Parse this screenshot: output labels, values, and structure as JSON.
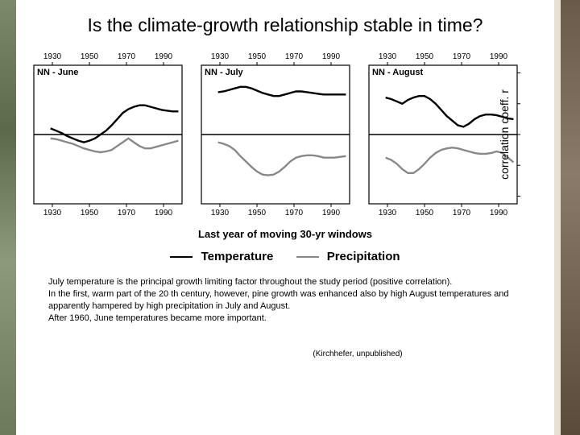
{
  "title": "Is the climate-growth relationship stable in time?",
  "ylabel": "correlation coeff. r",
  "xlabel": "Last year of moving 30-yr windows",
  "legend": {
    "temp": {
      "label": "Temperature",
      "color": "#000000",
      "width": 2.4
    },
    "precip": {
      "label": "Precipitation",
      "color": "#888888",
      "width": 2.4
    }
  },
  "axis": {
    "ylim": [
      -0.9,
      0.9
    ],
    "yticks": [
      -0.8,
      -0.4,
      0,
      0.4,
      0.8
    ],
    "xlim": [
      1920,
      2000
    ],
    "xticks_top": [
      1930,
      1950,
      1970,
      1990
    ],
    "xticks_bottom": [
      1930,
      1950,
      1970,
      1990
    ],
    "tick_fontsize": 10,
    "panel_label_fontsize": 11,
    "border_color": "#000000",
    "border_width": 1.2,
    "zero_line_width": 1.4,
    "panel_bg": "#ffffff"
  },
  "panels": [
    {
      "label": "NN - June",
      "temp_color": "#000000",
      "precip_color": "#888888",
      "temp": [
        [
          1929,
          0.08
        ],
        [
          1932,
          0.05
        ],
        [
          1935,
          0.02
        ],
        [
          1938,
          -0.02
        ],
        [
          1941,
          -0.05
        ],
        [
          1944,
          -0.08
        ],
        [
          1947,
          -0.1
        ],
        [
          1950,
          -0.08
        ],
        [
          1953,
          -0.05
        ],
        [
          1956,
          0.0
        ],
        [
          1959,
          0.05
        ],
        [
          1962,
          0.12
        ],
        [
          1965,
          0.2
        ],
        [
          1968,
          0.28
        ],
        [
          1971,
          0.33
        ],
        [
          1974,
          0.36
        ],
        [
          1977,
          0.38
        ],
        [
          1980,
          0.38
        ],
        [
          1983,
          0.36
        ],
        [
          1986,
          0.34
        ],
        [
          1989,
          0.32
        ],
        [
          1992,
          0.31
        ],
        [
          1995,
          0.3
        ],
        [
          1998,
          0.3
        ]
      ],
      "precip": [
        [
          1929,
          -0.05
        ],
        [
          1932,
          -0.06
        ],
        [
          1935,
          -0.08
        ],
        [
          1938,
          -0.1
        ],
        [
          1941,
          -0.12
        ],
        [
          1944,
          -0.15
        ],
        [
          1947,
          -0.18
        ],
        [
          1950,
          -0.2
        ],
        [
          1953,
          -0.22
        ],
        [
          1956,
          -0.23
        ],
        [
          1959,
          -0.22
        ],
        [
          1962,
          -0.2
        ],
        [
          1965,
          -0.15
        ],
        [
          1968,
          -0.1
        ],
        [
          1971,
          -0.05
        ],
        [
          1974,
          -0.1
        ],
        [
          1977,
          -0.15
        ],
        [
          1980,
          -0.18
        ],
        [
          1983,
          -0.18
        ],
        [
          1986,
          -0.16
        ],
        [
          1989,
          -0.14
        ],
        [
          1992,
          -0.12
        ],
        [
          1995,
          -0.1
        ],
        [
          1998,
          -0.08
        ]
      ]
    },
    {
      "label": "NN - July",
      "temp_color": "#000000",
      "precip_color": "#888888",
      "temp": [
        [
          1929,
          0.55
        ],
        [
          1932,
          0.56
        ],
        [
          1935,
          0.58
        ],
        [
          1938,
          0.6
        ],
        [
          1941,
          0.62
        ],
        [
          1944,
          0.62
        ],
        [
          1947,
          0.6
        ],
        [
          1950,
          0.57
        ],
        [
          1953,
          0.54
        ],
        [
          1956,
          0.52
        ],
        [
          1959,
          0.5
        ],
        [
          1962,
          0.5
        ],
        [
          1965,
          0.52
        ],
        [
          1968,
          0.54
        ],
        [
          1971,
          0.56
        ],
        [
          1974,
          0.56
        ],
        [
          1977,
          0.55
        ],
        [
          1980,
          0.54
        ],
        [
          1983,
          0.53
        ],
        [
          1986,
          0.52
        ],
        [
          1989,
          0.52
        ],
        [
          1992,
          0.52
        ],
        [
          1995,
          0.52
        ],
        [
          1998,
          0.52
        ]
      ],
      "precip": [
        [
          1929,
          -0.1
        ],
        [
          1932,
          -0.12
        ],
        [
          1935,
          -0.15
        ],
        [
          1938,
          -0.2
        ],
        [
          1941,
          -0.28
        ],
        [
          1944,
          -0.35
        ],
        [
          1947,
          -0.42
        ],
        [
          1950,
          -0.48
        ],
        [
          1953,
          -0.52
        ],
        [
          1956,
          -0.53
        ],
        [
          1959,
          -0.52
        ],
        [
          1962,
          -0.48
        ],
        [
          1965,
          -0.42
        ],
        [
          1968,
          -0.35
        ],
        [
          1971,
          -0.3
        ],
        [
          1974,
          -0.28
        ],
        [
          1977,
          -0.27
        ],
        [
          1980,
          -0.27
        ],
        [
          1983,
          -0.28
        ],
        [
          1986,
          -0.3
        ],
        [
          1989,
          -0.3
        ],
        [
          1992,
          -0.3
        ],
        [
          1995,
          -0.29
        ],
        [
          1998,
          -0.28
        ]
      ]
    },
    {
      "label": "NN - August",
      "temp_color": "#000000",
      "precip_color": "#888888",
      "temp": [
        [
          1929,
          0.48
        ],
        [
          1932,
          0.46
        ],
        [
          1935,
          0.43
        ],
        [
          1938,
          0.4
        ],
        [
          1941,
          0.45
        ],
        [
          1944,
          0.48
        ],
        [
          1947,
          0.5
        ],
        [
          1950,
          0.5
        ],
        [
          1953,
          0.46
        ],
        [
          1956,
          0.4
        ],
        [
          1959,
          0.32
        ],
        [
          1962,
          0.24
        ],
        [
          1965,
          0.18
        ],
        [
          1968,
          0.12
        ],
        [
          1971,
          0.1
        ],
        [
          1974,
          0.14
        ],
        [
          1977,
          0.2
        ],
        [
          1980,
          0.24
        ],
        [
          1983,
          0.26
        ],
        [
          1986,
          0.26
        ],
        [
          1989,
          0.25
        ],
        [
          1992,
          0.23
        ],
        [
          1995,
          0.21
        ],
        [
          1998,
          0.2
        ]
      ],
      "precip": [
        [
          1929,
          -0.3
        ],
        [
          1932,
          -0.33
        ],
        [
          1935,
          -0.38
        ],
        [
          1938,
          -0.45
        ],
        [
          1941,
          -0.5
        ],
        [
          1944,
          -0.5
        ],
        [
          1947,
          -0.45
        ],
        [
          1950,
          -0.38
        ],
        [
          1953,
          -0.3
        ],
        [
          1956,
          -0.24
        ],
        [
          1959,
          -0.2
        ],
        [
          1962,
          -0.18
        ],
        [
          1965,
          -0.17
        ],
        [
          1968,
          -0.18
        ],
        [
          1971,
          -0.2
        ],
        [
          1974,
          -0.22
        ],
        [
          1977,
          -0.24
        ],
        [
          1980,
          -0.25
        ],
        [
          1983,
          -0.25
        ],
        [
          1986,
          -0.24
        ],
        [
          1989,
          -0.22
        ],
        [
          1992,
          -0.24
        ],
        [
          1995,
          -0.3
        ],
        [
          1998,
          -0.36
        ]
      ]
    }
  ],
  "show_right_ticks_on_panel": 2,
  "bodytext": {
    "p1": "July temperature is the principal growth limiting factor throughout the study period (positive correlation).",
    "p2": "In the first, warm part of the 20 th century, however, pine growth was enhanced also by high August temperatures and apparently hampered by high precipitation in July and August.",
    "p3": "After 1960, June temperatures became more important."
  },
  "citation": "(Kirchhefer, unpublished)"
}
